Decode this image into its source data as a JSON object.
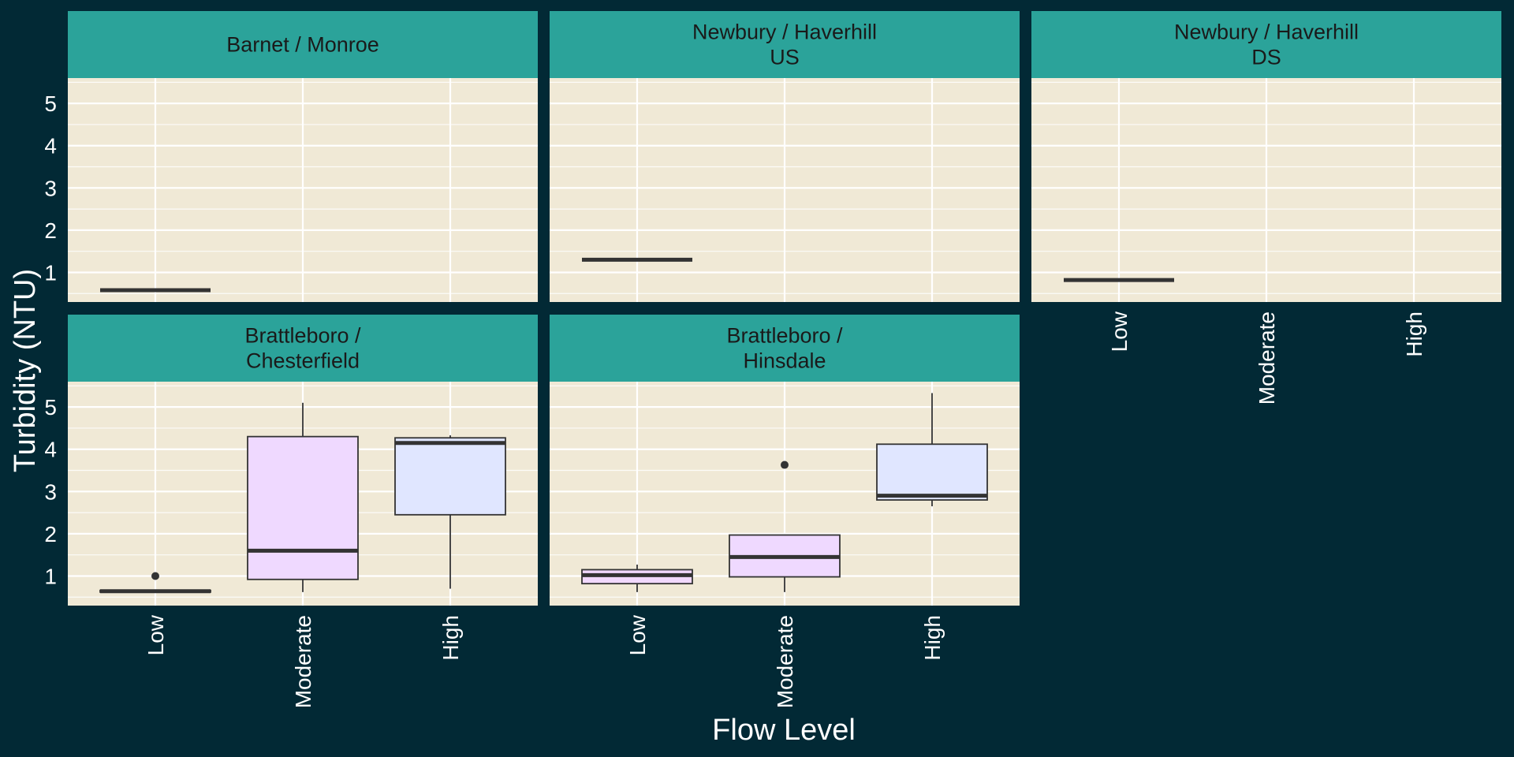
{
  "chart_data": {
    "type": "boxplot",
    "facet_layout": "wrap-2-rows",
    "xlabel": "Flow Level",
    "ylabel": "Turbidity (NTU)",
    "categories": [
      "Low",
      "Moderate",
      "High"
    ],
    "yticks": [
      "1",
      "2",
      "3",
      "4",
      "5"
    ],
    "ylim": [
      0.3,
      5.6
    ],
    "grid": true,
    "legend": "none",
    "colors": {
      "background": "#022935",
      "panel": "#F0E9D6",
      "strip": "#2BA39A",
      "strip_text": "#1A1A1A",
      "axis_text": "#FFFFFF",
      "box_stroke": "#333333",
      "fill_Low": "#F2D9FF",
      "fill_Moderate": "#EFD9FF",
      "fill_High": "#E0E6FF"
    },
    "facets": [
      {
        "title": [
          "Barnet / Monroe"
        ],
        "boxes": [
          {
            "category": "Low",
            "min": 0.58,
            "q1": 0.58,
            "median": 0.58,
            "q3": 0.58,
            "max": 0.58,
            "outliers": []
          }
        ]
      },
      {
        "title": [
          "Newbury / Haverhill",
          "US"
        ],
        "boxes": [
          {
            "category": "Low",
            "min": 1.3,
            "q1": 1.3,
            "median": 1.3,
            "q3": 1.3,
            "max": 1.3,
            "outliers": []
          }
        ]
      },
      {
        "title": [
          "Newbury / Haverhill",
          "DS"
        ],
        "boxes": [
          {
            "category": "Low",
            "min": 0.82,
            "q1": 0.82,
            "median": 0.82,
            "q3": 0.82,
            "max": 0.82,
            "outliers": []
          }
        ]
      },
      {
        "title": [
          "Brattleboro /",
          "Chesterfield"
        ],
        "boxes": [
          {
            "category": "Low",
            "min": 0.62,
            "q1": 0.62,
            "median": 0.64,
            "q3": 0.66,
            "max": 0.66,
            "outliers": [
              1.0
            ]
          },
          {
            "category": "Moderate",
            "min": 0.62,
            "q1": 0.92,
            "median": 1.6,
            "q3": 4.3,
            "max": 5.1,
            "outliers": []
          },
          {
            "category": "High",
            "min": 0.7,
            "q1": 2.45,
            "median": 4.15,
            "q3": 4.27,
            "max": 4.33,
            "outliers": []
          }
        ]
      },
      {
        "title": [
          "Brattleboro /",
          "Hinsdale"
        ],
        "boxes": [
          {
            "category": "Low",
            "min": 0.62,
            "q1": 0.82,
            "median": 1.02,
            "q3": 1.15,
            "max": 1.27,
            "outliers": []
          },
          {
            "category": "Moderate",
            "min": 0.62,
            "q1": 0.98,
            "median": 1.45,
            "q3": 1.97,
            "max": 1.97,
            "outliers": [
              3.63
            ]
          },
          {
            "category": "High",
            "min": 2.65,
            "q1": 2.8,
            "median": 2.9,
            "q3": 4.12,
            "max": 5.33,
            "outliers": []
          }
        ]
      }
    ]
  }
}
